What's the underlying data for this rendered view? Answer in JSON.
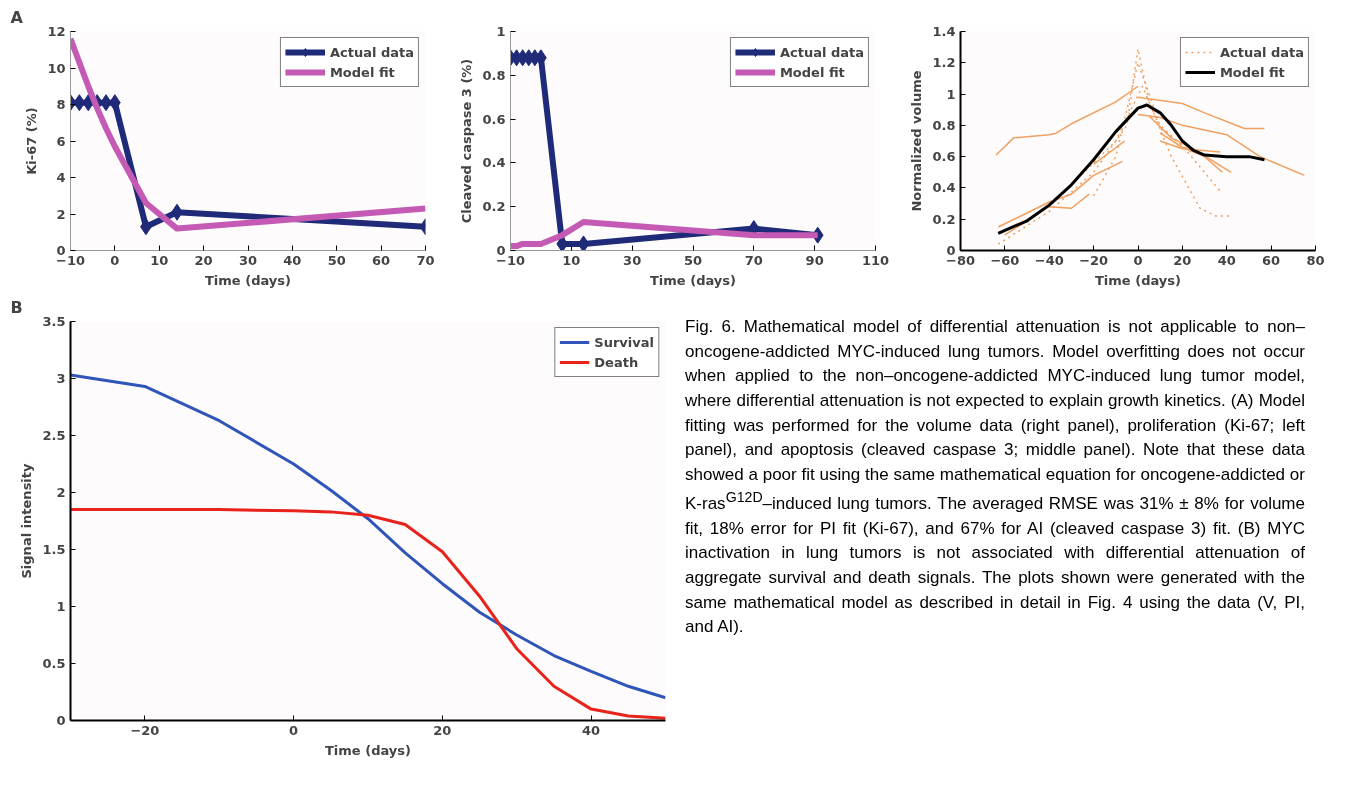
{
  "chart_data": [
    {
      "type": "line",
      "annotations": [
        "A"
      ],
      "xlabel": "Time (days)",
      "ylabel": "Ki-67 (%)",
      "xlim": [
        -10,
        70
      ],
      "xticks": [
        -10,
        0,
        10,
        20,
        30,
        40,
        50,
        60,
        70
      ],
      "ylim": [
        0,
        12
      ],
      "yticks": [
        0,
        2,
        4,
        6,
        8,
        10,
        12
      ],
      "grid": false,
      "legend": "top right",
      "series": [
        {
          "name": "Actual data",
          "color": "#1f2a78",
          "marker": "diamond",
          "x": [
            -10,
            -8,
            -6,
            -4,
            -2,
            0,
            7,
            14,
            70
          ],
          "values": [
            8.1,
            8.1,
            8.1,
            8.1,
            8.1,
            8.1,
            1.3,
            2.1,
            1.3
          ]
        },
        {
          "name": "Model fit",
          "color": "#c45ab3",
          "marker": "none",
          "x": [
            -10,
            -8,
            -6,
            -4,
            -2,
            0,
            7,
            14,
            70
          ],
          "values": [
            11.6,
            10.3,
            9.0,
            7.8,
            6.7,
            5.7,
            2.6,
            1.2,
            2.3
          ]
        }
      ]
    },
    {
      "type": "line",
      "xlabel": "Time (days)",
      "ylabel": "Cleaved caspase 3 (%)",
      "xlim": [
        -10,
        110
      ],
      "xticks": [
        -10,
        10,
        30,
        50,
        70,
        90,
        110
      ],
      "ylim": [
        0,
        1
      ],
      "yticks": [
        0,
        0.2,
        0.4,
        0.6,
        0.8,
        1
      ],
      "grid": false,
      "legend": "top right",
      "series": [
        {
          "name": "Actual data",
          "color": "#1f2a78",
          "marker": "diamond",
          "x": [
            -10,
            -8,
            -6,
            -4,
            -2,
            0,
            7,
            14,
            70,
            91
          ],
          "values": [
            0.88,
            0.88,
            0.88,
            0.88,
            0.88,
            0.88,
            0.03,
            0.03,
            0.1,
            0.07
          ]
        },
        {
          "name": "Model fit",
          "color": "#c45ab3",
          "marker": "none",
          "x": [
            -10,
            -8,
            -6,
            -4,
            -2,
            0,
            7,
            14,
            70,
            91
          ],
          "values": [
            0.02,
            0.02,
            0.03,
            0.03,
            0.03,
            0.03,
            0.07,
            0.13,
            0.07,
            0.07
          ]
        }
      ]
    },
    {
      "type": "line",
      "xlabel": "Time (days)",
      "ylabel": "Normalized volume",
      "xlim": [
        -80,
        80
      ],
      "xticks": [
        -80,
        -60,
        -40,
        -20,
        0,
        20,
        40,
        60,
        80
      ],
      "ylim": [
        0,
        1.4
      ],
      "yticks": [
        0,
        0.2,
        0.4,
        0.6,
        0.8,
        1,
        1.2,
        1.4
      ],
      "grid": false,
      "legend": "top right",
      "marker": "none",
      "series": [
        {
          "name": "Actual data",
          "color": "#f0a060",
          "line_style": "dotted",
          "x": [
            -63,
            -40,
            -20,
            -5,
            0,
            5,
            15,
            28,
            35,
            42
          ],
          "values": [
            0.04,
            0.25,
            0.5,
            0.8,
            1.29,
            0.95,
            0.6,
            0.27,
            0.22,
            0.22
          ]
        },
        {
          "color": "#f0a060",
          "line_style": "dotted",
          "x": [
            -20,
            -10,
            0,
            10,
            20,
            37
          ],
          "values": [
            0.35,
            0.6,
            1.2,
            0.8,
            0.67,
            0.38
          ]
        },
        {
          "color": "#f0a060",
          "line_style": "dotted",
          "x": [
            -50,
            -30,
            -10,
            2,
            10,
            25
          ],
          "values": [
            0.18,
            0.42,
            0.7,
            1.05,
            0.78,
            0.62
          ]
        },
        {
          "color": "#f0a060",
          "line_style": "solid",
          "x": [
            -64,
            -56,
            -40,
            -37,
            -30,
            -10,
            0
          ],
          "values": [
            0.61,
            0.72,
            0.74,
            0.75,
            0.81,
            0.95,
            1.05
          ]
        },
        {
          "color": "#f0a060",
          "line_style": "solid",
          "x": [
            0,
            20,
            30,
            48,
            57
          ],
          "values": [
            0.98,
            0.94,
            0.88,
            0.78,
            0.78
          ]
        },
        {
          "color": "#f0a060",
          "line_style": "solid",
          "x": [
            0,
            10,
            20,
            40,
            55,
            75
          ],
          "values": [
            0.87,
            0.85,
            0.8,
            0.74,
            0.6,
            0.48
          ]
        },
        {
          "color": "#f0a060",
          "line_style": "solid",
          "x": [
            -63,
            -50,
            -40,
            -30,
            -20,
            -7
          ],
          "values": [
            0.15,
            0.24,
            0.31,
            0.36,
            0.48,
            0.57
          ]
        },
        {
          "color": "#f0a060",
          "line_style": "solid",
          "x": [
            -60,
            -40,
            -30,
            -22
          ],
          "values": [
            0.1,
            0.28,
            0.27,
            0.36
          ]
        },
        {
          "color": "#f0a060",
          "line_style": "solid",
          "x": [
            -20,
            -6
          ],
          "values": [
            0.55,
            0.7
          ]
        },
        {
          "color": "#f0a060",
          "line_style": "solid",
          "x": [
            10,
            20,
            30,
            38
          ],
          "values": [
            0.75,
            0.66,
            0.6,
            0.5
          ]
        },
        {
          "color": "#f0a060",
          "line_style": "solid",
          "x": [
            5,
            15,
            25,
            42
          ],
          "values": [
            0.86,
            0.72,
            0.65,
            0.5
          ]
        },
        {
          "color": "#f0a060",
          "line_style": "solid",
          "x": [
            10,
            20,
            37
          ],
          "values": [
            0.7,
            0.65,
            0.63
          ]
        },
        {
          "name": "Model fit",
          "color": "#000000",
          "line_style": "solid",
          "x": [
            -63,
            -50,
            -40,
            -30,
            -20,
            -10,
            0,
            4,
            10,
            15,
            20,
            25,
            30,
            40,
            50,
            57
          ],
          "values": [
            0.11,
            0.19,
            0.29,
            0.42,
            0.58,
            0.76,
            0.91,
            0.93,
            0.88,
            0.8,
            0.7,
            0.64,
            0.61,
            0.6,
            0.6,
            0.58
          ]
        }
      ]
    },
    {
      "type": "line",
      "annotations": [
        "B",
        "Fig. 6. Mathematical model of differential attenuation is not applicable to non–oncogene-addicted MYC-induced lung tumors. Model overfitting does not occur when applied to the non–oncogene-addicted MYC-induced lung tumor model, where differential attenuation is not expected to explain growth kinetics. (A) Model fitting was performed for the volume data (right panel), proliferation (Ki-67; left panel), and apoptosis (cleaved caspase 3; middle panel). Note that these data showed a poor fit using the same mathematical equation for oncogene-addicted or K-ras$^{G12D}$–induced lung tumors. The averaged RMSE was 31% ± 8% for volume fit, 18% error for PI fit (Ki-67), and 67% for AI (cleaved caspase 3) fit. (B) MYC inactivation in lung tumors is not associated with differential attenuation of aggregate survival and death signals. The plots shown were generated with the same mathematical model as described in detail in Fig. 4 using the data (V, PI, and AI)."
      ],
      "xlabel": "Time (days)",
      "ylabel": "Signal intensity",
      "xlim": [
        -30,
        50
      ],
      "xticks": [
        -20,
        0,
        20,
        40
      ],
      "ylim": [
        0,
        3.5
      ],
      "yticks": [
        0,
        0.5,
        1,
        1.5,
        2,
        2.5,
        3,
        3.5
      ],
      "grid": false,
      "legend": "top right",
      "marker": "none",
      "series": [
        {
          "name": "Survival",
          "color": "#2f55b8",
          "x": [
            -30,
            -20,
            -10,
            0,
            5,
            10,
            15,
            20,
            25,
            30,
            35,
            40,
            45,
            50
          ],
          "values": [
            3.03,
            2.93,
            2.63,
            2.25,
            2.02,
            1.77,
            1.47,
            1.2,
            0.95,
            0.75,
            0.57,
            0.43,
            0.3,
            0.2
          ]
        },
        {
          "name": "Death",
          "color": "#e8231c",
          "x": [
            -30,
            -10,
            0,
            5,
            10,
            15,
            20,
            25,
            30,
            35,
            40,
            45,
            50
          ],
          "values": [
            1.85,
            1.85,
            1.84,
            1.83,
            1.8,
            1.72,
            1.48,
            1.09,
            0.63,
            0.3,
            0.1,
            0.04,
            0.02
          ]
        }
      ]
    }
  ]
}
